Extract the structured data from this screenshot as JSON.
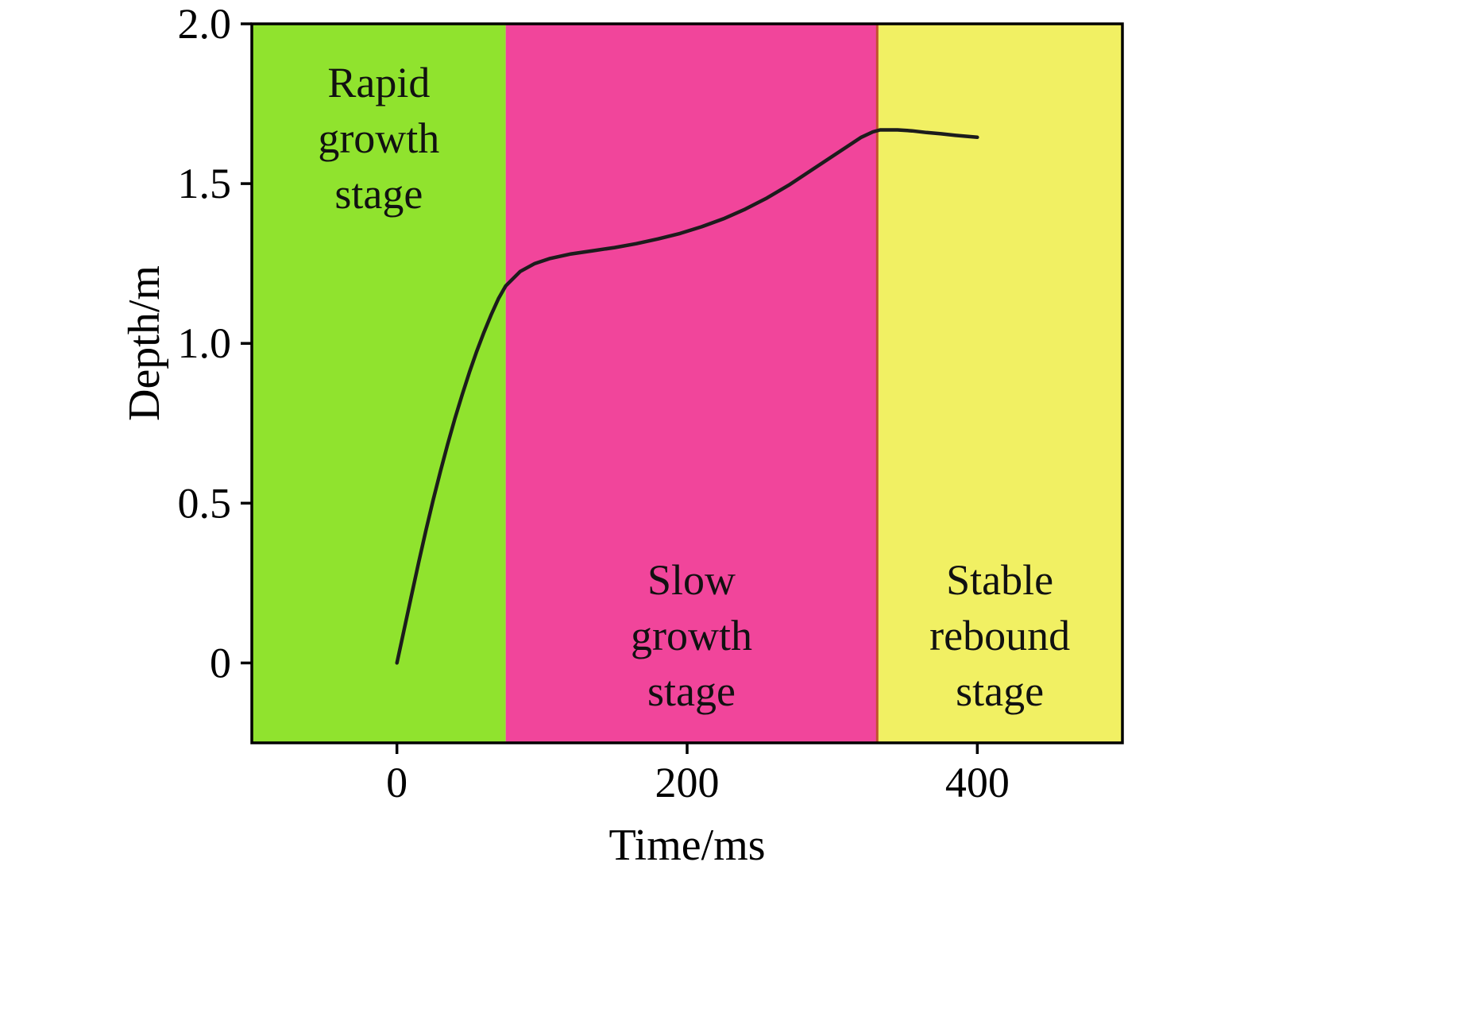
{
  "figure": {
    "background": "#ffffff"
  },
  "chart_data": {
    "type": "line",
    "title": "",
    "xlabel": "Time/ms",
    "ylabel": "Depth/m",
    "xlim": [
      -100,
      500
    ],
    "ylim": [
      -0.25,
      2.0
    ],
    "x_ticks": [
      0,
      200,
      400
    ],
    "x_tick_labels": [
      "0",
      "200",
      "400"
    ],
    "y_ticks": [
      0,
      0.5,
      1.0,
      1.5,
      2.0
    ],
    "y_tick_labels": [
      "0",
      "0.5",
      "1.0",
      "1.5",
      "2.0"
    ],
    "grid": false,
    "legend": "none",
    "line_color": "#1c1c1c",
    "line_width": 4.5,
    "axis_color": "#000000",
    "stage_divider": {
      "x": 331,
      "color": "#c2512d"
    },
    "regions": [
      {
        "slug": "rapid-growth-stage",
        "label": "Rapid growth stage",
        "label_lines": [
          "Rapid",
          "growth",
          "stage"
        ],
        "x_start": -100,
        "x_end": 75,
        "color": "#90e32e",
        "label_position": "top"
      },
      {
        "slug": "slow-growth-stage",
        "label": "Slow growth stage",
        "label_lines": [
          "Slow",
          "growth",
          "stage"
        ],
        "x_start": 75,
        "x_end": 331,
        "color": "#f1459b",
        "label_position": "bottom"
      },
      {
        "slug": "stable-rebound-stage",
        "label": "Stable rebound stage",
        "label_lines": [
          "Stable",
          "rebound",
          "stage"
        ],
        "x_start": 331,
        "x_end": 500,
        "color": "#f1f063",
        "label_position": "bottom"
      }
    ],
    "series": [
      {
        "name": "crater-depth",
        "points": [
          [
            0,
            0
          ],
          [
            5,
            0.105
          ],
          [
            10,
            0.21
          ],
          [
            15,
            0.315
          ],
          [
            20,
            0.415
          ],
          [
            25,
            0.51
          ],
          [
            30,
            0.6
          ],
          [
            35,
            0.685
          ],
          [
            40,
            0.765
          ],
          [
            45,
            0.84
          ],
          [
            50,
            0.91
          ],
          [
            55,
            0.975
          ],
          [
            60,
            1.035
          ],
          [
            65,
            1.09
          ],
          [
            70,
            1.14
          ],
          [
            75,
            1.18
          ],
          [
            85,
            1.225
          ],
          [
            95,
            1.25
          ],
          [
            105,
            1.265
          ],
          [
            120,
            1.28
          ],
          [
            135,
            1.29
          ],
          [
            150,
            1.3
          ],
          [
            165,
            1.312
          ],
          [
            180,
            1.327
          ],
          [
            195,
            1.344
          ],
          [
            210,
            1.365
          ],
          [
            225,
            1.39
          ],
          [
            240,
            1.42
          ],
          [
            255,
            1.455
          ],
          [
            270,
            1.495
          ],
          [
            285,
            1.54
          ],
          [
            300,
            1.585
          ],
          [
            310,
            1.615
          ],
          [
            320,
            1.645
          ],
          [
            328,
            1.662
          ],
          [
            333,
            1.668
          ],
          [
            345,
            1.668
          ],
          [
            355,
            1.665
          ],
          [
            365,
            1.66
          ],
          [
            375,
            1.656
          ],
          [
            385,
            1.651
          ],
          [
            400,
            1.645
          ]
        ]
      }
    ]
  }
}
